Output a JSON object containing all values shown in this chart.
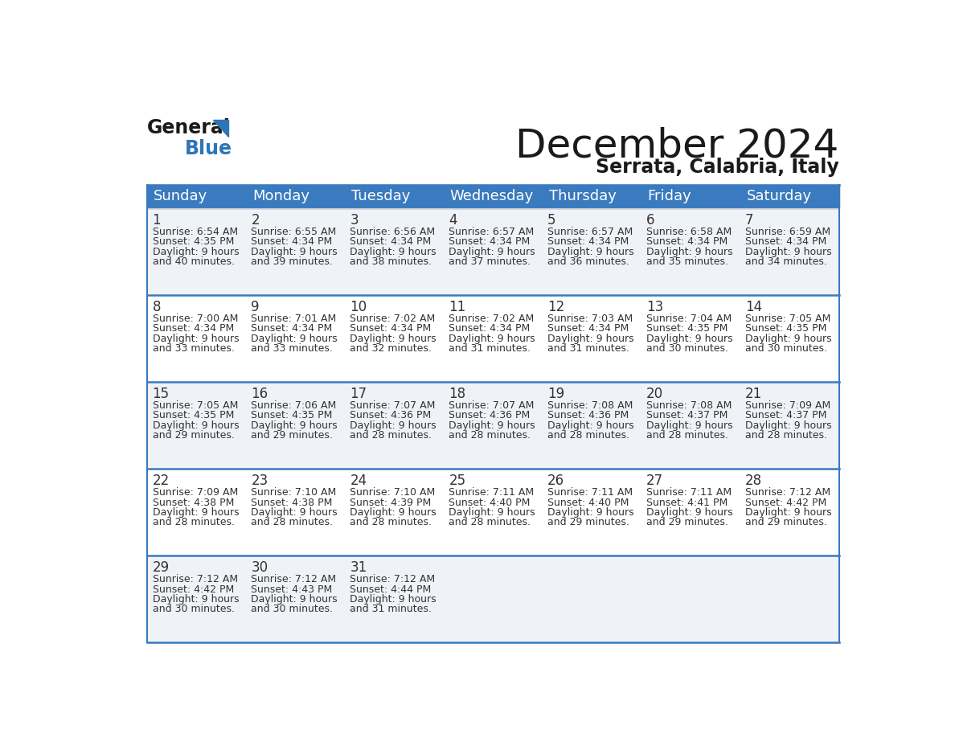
{
  "title": "December 2024",
  "subtitle": "Serrata, Calabria, Italy",
  "header_color": "#3a7abf",
  "header_text_color": "#ffffff",
  "border_color": "#3a7abf",
  "cell_bg_light": "#eff3f8",
  "cell_bg_white": "#ffffff",
  "day_names": [
    "Sunday",
    "Monday",
    "Tuesday",
    "Wednesday",
    "Thursday",
    "Friday",
    "Saturday"
  ],
  "days": [
    {
      "day": 1,
      "col": 0,
      "row": 0,
      "sunrise": "6:54 AM",
      "sunset": "4:35 PM",
      "daylight": "9 hours",
      "daylight2": "and 40 minutes."
    },
    {
      "day": 2,
      "col": 1,
      "row": 0,
      "sunrise": "6:55 AM",
      "sunset": "4:34 PM",
      "daylight": "9 hours",
      "daylight2": "and 39 minutes."
    },
    {
      "day": 3,
      "col": 2,
      "row": 0,
      "sunrise": "6:56 AM",
      "sunset": "4:34 PM",
      "daylight": "9 hours",
      "daylight2": "and 38 minutes."
    },
    {
      "day": 4,
      "col": 3,
      "row": 0,
      "sunrise": "6:57 AM",
      "sunset": "4:34 PM",
      "daylight": "9 hours",
      "daylight2": "and 37 minutes."
    },
    {
      "day": 5,
      "col": 4,
      "row": 0,
      "sunrise": "6:57 AM",
      "sunset": "4:34 PM",
      "daylight": "9 hours",
      "daylight2": "and 36 minutes."
    },
    {
      "day": 6,
      "col": 5,
      "row": 0,
      "sunrise": "6:58 AM",
      "sunset": "4:34 PM",
      "daylight": "9 hours",
      "daylight2": "and 35 minutes."
    },
    {
      "day": 7,
      "col": 6,
      "row": 0,
      "sunrise": "6:59 AM",
      "sunset": "4:34 PM",
      "daylight": "9 hours",
      "daylight2": "and 34 minutes."
    },
    {
      "day": 8,
      "col": 0,
      "row": 1,
      "sunrise": "7:00 AM",
      "sunset": "4:34 PM",
      "daylight": "9 hours",
      "daylight2": "and 33 minutes."
    },
    {
      "day": 9,
      "col": 1,
      "row": 1,
      "sunrise": "7:01 AM",
      "sunset": "4:34 PM",
      "daylight": "9 hours",
      "daylight2": "and 33 minutes."
    },
    {
      "day": 10,
      "col": 2,
      "row": 1,
      "sunrise": "7:02 AM",
      "sunset": "4:34 PM",
      "daylight": "9 hours",
      "daylight2": "and 32 minutes."
    },
    {
      "day": 11,
      "col": 3,
      "row": 1,
      "sunrise": "7:02 AM",
      "sunset": "4:34 PM",
      "daylight": "9 hours",
      "daylight2": "and 31 minutes."
    },
    {
      "day": 12,
      "col": 4,
      "row": 1,
      "sunrise": "7:03 AM",
      "sunset": "4:34 PM",
      "daylight": "9 hours",
      "daylight2": "and 31 minutes."
    },
    {
      "day": 13,
      "col": 5,
      "row": 1,
      "sunrise": "7:04 AM",
      "sunset": "4:35 PM",
      "daylight": "9 hours",
      "daylight2": "and 30 minutes."
    },
    {
      "day": 14,
      "col": 6,
      "row": 1,
      "sunrise": "7:05 AM",
      "sunset": "4:35 PM",
      "daylight": "9 hours",
      "daylight2": "and 30 minutes."
    },
    {
      "day": 15,
      "col": 0,
      "row": 2,
      "sunrise": "7:05 AM",
      "sunset": "4:35 PM",
      "daylight": "9 hours",
      "daylight2": "and 29 minutes."
    },
    {
      "day": 16,
      "col": 1,
      "row": 2,
      "sunrise": "7:06 AM",
      "sunset": "4:35 PM",
      "daylight": "9 hours",
      "daylight2": "and 29 minutes."
    },
    {
      "day": 17,
      "col": 2,
      "row": 2,
      "sunrise": "7:07 AM",
      "sunset": "4:36 PM",
      "daylight": "9 hours",
      "daylight2": "and 28 minutes."
    },
    {
      "day": 18,
      "col": 3,
      "row": 2,
      "sunrise": "7:07 AM",
      "sunset": "4:36 PM",
      "daylight": "9 hours",
      "daylight2": "and 28 minutes."
    },
    {
      "day": 19,
      "col": 4,
      "row": 2,
      "sunrise": "7:08 AM",
      "sunset": "4:36 PM",
      "daylight": "9 hours",
      "daylight2": "and 28 minutes."
    },
    {
      "day": 20,
      "col": 5,
      "row": 2,
      "sunrise": "7:08 AM",
      "sunset": "4:37 PM",
      "daylight": "9 hours",
      "daylight2": "and 28 minutes."
    },
    {
      "day": 21,
      "col": 6,
      "row": 2,
      "sunrise": "7:09 AM",
      "sunset": "4:37 PM",
      "daylight": "9 hours",
      "daylight2": "and 28 minutes."
    },
    {
      "day": 22,
      "col": 0,
      "row": 3,
      "sunrise": "7:09 AM",
      "sunset": "4:38 PM",
      "daylight": "9 hours",
      "daylight2": "and 28 minutes."
    },
    {
      "day": 23,
      "col": 1,
      "row": 3,
      "sunrise": "7:10 AM",
      "sunset": "4:38 PM",
      "daylight": "9 hours",
      "daylight2": "and 28 minutes."
    },
    {
      "day": 24,
      "col": 2,
      "row": 3,
      "sunrise": "7:10 AM",
      "sunset": "4:39 PM",
      "daylight": "9 hours",
      "daylight2": "and 28 minutes."
    },
    {
      "day": 25,
      "col": 3,
      "row": 3,
      "sunrise": "7:11 AM",
      "sunset": "4:40 PM",
      "daylight": "9 hours",
      "daylight2": "and 28 minutes."
    },
    {
      "day": 26,
      "col": 4,
      "row": 3,
      "sunrise": "7:11 AM",
      "sunset": "4:40 PM",
      "daylight": "9 hours",
      "daylight2": "and 29 minutes."
    },
    {
      "day": 27,
      "col": 5,
      "row": 3,
      "sunrise": "7:11 AM",
      "sunset": "4:41 PM",
      "daylight": "9 hours",
      "daylight2": "and 29 minutes."
    },
    {
      "day": 28,
      "col": 6,
      "row": 3,
      "sunrise": "7:12 AM",
      "sunset": "4:42 PM",
      "daylight": "9 hours",
      "daylight2": "and 29 minutes."
    },
    {
      "day": 29,
      "col": 0,
      "row": 4,
      "sunrise": "7:12 AM",
      "sunset": "4:42 PM",
      "daylight": "9 hours",
      "daylight2": "and 30 minutes."
    },
    {
      "day": 30,
      "col": 1,
      "row": 4,
      "sunrise": "7:12 AM",
      "sunset": "4:43 PM",
      "daylight": "9 hours",
      "daylight2": "and 30 minutes."
    },
    {
      "day": 31,
      "col": 2,
      "row": 4,
      "sunrise": "7:12 AM",
      "sunset": "4:44 PM",
      "daylight": "9 hours",
      "daylight2": "and 31 minutes."
    }
  ],
  "n_rows": 5,
  "n_cols": 7,
  "text_color": "#333333",
  "day_num_fontsize": 12,
  "info_fontsize": 9,
  "header_fontsize": 13,
  "title_fontsize": 36,
  "subtitle_fontsize": 17,
  "logo_general_fontsize": 17,
  "logo_blue_fontsize": 17
}
